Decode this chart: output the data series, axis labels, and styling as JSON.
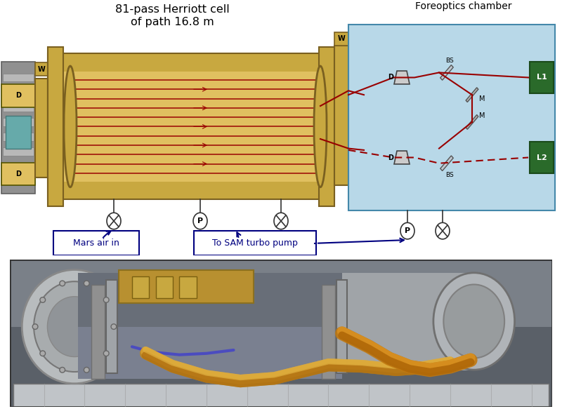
{
  "title_diagram": "81-pass Herriott cell\nof path 16.8 m",
  "title_foreoptics": "Foreoptics chamber",
  "label_mars_air": "Mars air in",
  "label_sam_pump": "To SAM turbo pump",
  "bg_color": "#ffffff",
  "diagram_bg": "#ffffff",
  "foreoptics_bg": "#b8d8e8",
  "tube_color": "#c8a840",
  "tube_dark": "#7a6020",
  "tube_light": "#e0c060",
  "beam_color": "#990000",
  "gray_end_color": "#a0a0a0",
  "green_box_color": "#2a6a2a",
  "label_color": "#000080",
  "arrow_color": "#000080",
  "text_color": "#000000"
}
